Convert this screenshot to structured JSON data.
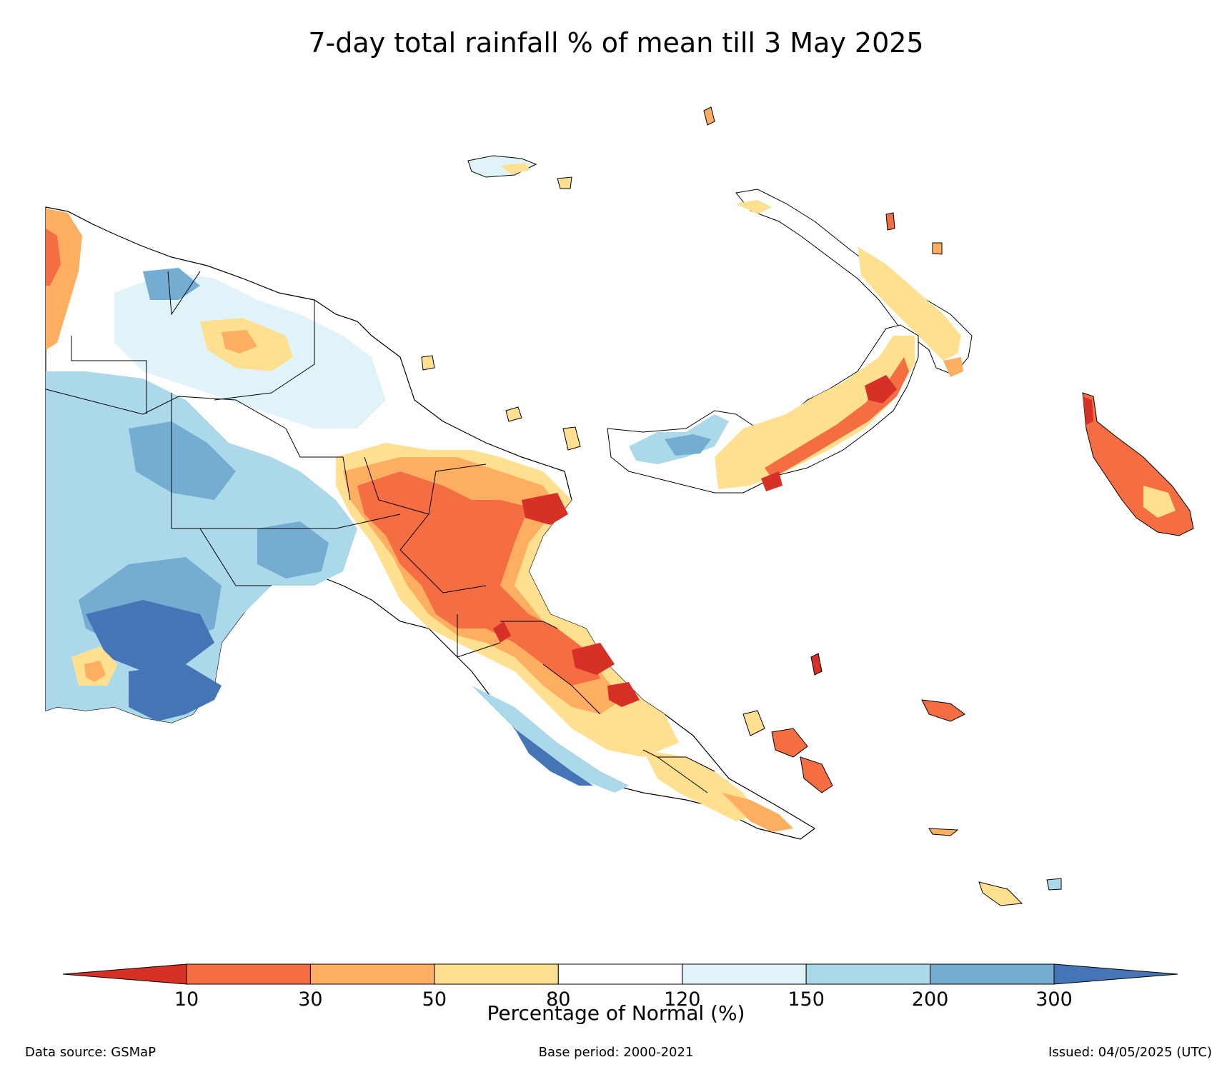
{
  "title": "7-day total rainfall % of mean till 3 May 2025",
  "colorbar": {
    "label": "Percentage of Normal (%)",
    "ticks": [
      "10",
      "30",
      "50",
      "80",
      "120",
      "150",
      "200",
      "300"
    ],
    "colors": [
      "#d73027",
      "#f46d43",
      "#fdae61",
      "#fee090",
      "#ffffff",
      "#e0f3f8",
      "#abd9e9",
      "#74add1",
      "#4575b4"
    ]
  },
  "footer": {
    "data_source": "Data source: GSMaP",
    "base_period": "Base period: 2000-2021",
    "issued": "Issued: 04/05/2025 (UTC)"
  }
}
